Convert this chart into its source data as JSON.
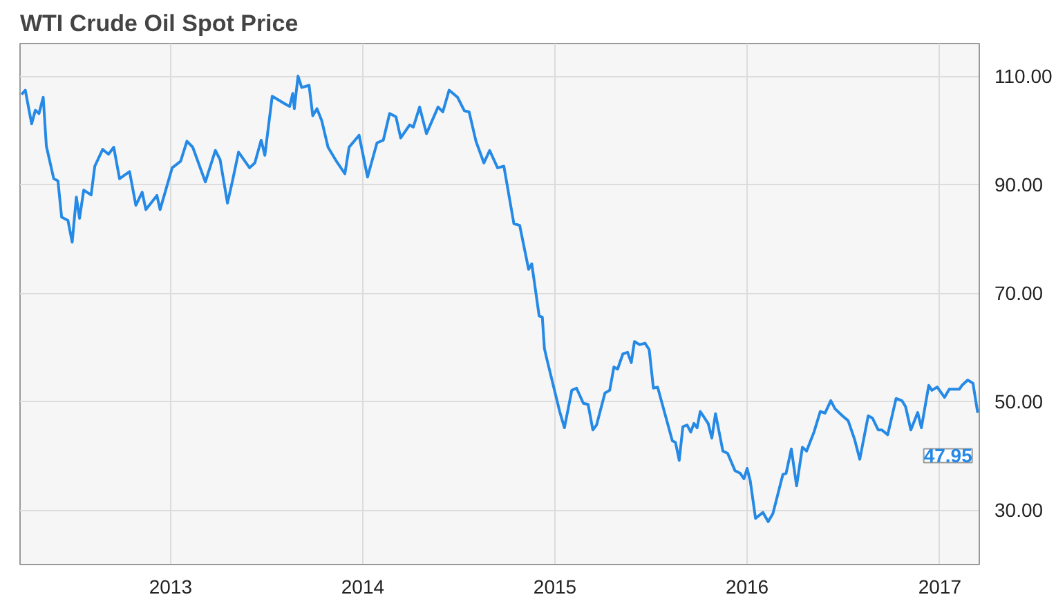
{
  "chart_data": {
    "type": "line",
    "title": "WTI Crude Oil Spot Price",
    "x": [
      "2012-03-24",
      "2012-03-31",
      "2012-04-12",
      "2012-04-19",
      "2012-04-26",
      "2012-05-04",
      "2012-05-10",
      "2012-05-24",
      "2012-06-01",
      "2012-06-08",
      "2012-06-20",
      "2012-06-28",
      "2012-07-06",
      "2012-07-12",
      "2012-07-20",
      "2012-08-03",
      "2012-08-10",
      "2012-08-25",
      "2012-09-05",
      "2012-09-15",
      "2012-09-26",
      "2012-10-15",
      "2012-10-27",
      "2012-11-08",
      "2012-11-15",
      "2012-12-06",
      "2012-12-12",
      "2013-01-04",
      "2013-01-20",
      "2013-02-01",
      "2013-02-12",
      "2013-03-08",
      "2013-03-27",
      "2013-04-05",
      "2013-04-19",
      "2013-04-29",
      "2013-05-10",
      "2013-05-31",
      "2013-06-10",
      "2013-06-22",
      "2013-06-29",
      "2013-07-13",
      "2013-08-06",
      "2013-08-15",
      "2013-08-21",
      "2013-08-24",
      "2013-08-31",
      "2013-09-07",
      "2013-09-21",
      "2013-09-28",
      "2013-10-06",
      "2013-10-15",
      "2013-10-27",
      "2013-11-12",
      "2013-11-28",
      "2013-12-06",
      "2013-12-25",
      "2014-01-10",
      "2014-01-28",
      "2014-02-09",
      "2014-02-21",
      "2014-03-05",
      "2014-03-14",
      "2014-03-31",
      "2014-04-07",
      "2014-04-19",
      "2014-05-02",
      "2014-05-24",
      "2014-06-02",
      "2014-06-14",
      "2014-06-30",
      "2014-07-13",
      "2014-07-22",
      "2014-08-04",
      "2014-08-19",
      "2014-08-30",
      "2014-09-14",
      "2014-09-26",
      "2014-10-15",
      "2014-10-26",
      "2014-11-12",
      "2014-11-18",
      "2014-12-02",
      "2014-12-08",
      "2014-12-12",
      "2014-12-17",
      "2015-01-10",
      "2015-01-19",
      "2015-02-02",
      "2015-02-11",
      "2015-02-24",
      "2015-03-05",
      "2015-03-14",
      "2015-03-21",
      "2015-04-06",
      "2015-04-15",
      "2015-04-23",
      "2015-04-30",
      "2015-05-10",
      "2015-05-19",
      "2015-05-26",
      "2015-06-01",
      "2015-06-11",
      "2015-06-21",
      "2015-06-29",
      "2015-07-07",
      "2015-07-15",
      "2015-08-12",
      "2015-08-18",
      "2015-08-25",
      "2015-09-01",
      "2015-09-09",
      "2015-09-16",
      "2015-09-22",
      "2015-09-28",
      "2015-10-04",
      "2015-10-19",
      "2015-10-26",
      "2015-11-02",
      "2015-11-16",
      "2015-11-25",
      "2015-12-09",
      "2015-12-19",
      "2015-12-26",
      "2016-01-01",
      "2016-01-07",
      "2016-01-17",
      "2016-01-31",
      "2016-02-10",
      "2016-02-19",
      "2016-03-09",
      "2016-03-15",
      "2016-03-25",
      "2016-04-04",
      "2016-04-15",
      "2016-04-23",
      "2016-05-07",
      "2016-05-19",
      "2016-05-28",
      "2016-06-08",
      "2016-06-16",
      "2016-06-30",
      "2016-07-11",
      "2016-07-23",
      "2016-08-02",
      "2016-08-18",
      "2016-08-26",
      "2016-09-06",
      "2016-09-13",
      "2016-09-24",
      "2016-10-10",
      "2016-10-21",
      "2016-10-28",
      "2016-11-07",
      "2016-11-20",
      "2016-11-27",
      "2016-12-11",
      "2016-12-17",
      "2016-12-27",
      "2017-01-10",
      "2017-01-19",
      "2017-02-07",
      "2017-02-12",
      "2017-02-23",
      "2017-03-05",
      "2017-03-14"
    ],
    "series": [
      {
        "color": "#2589e6",
        "values": [
          106.6,
          107.4,
          101.2,
          103.7,
          103.1,
          106.1,
          97.1,
          91.1,
          90.7,
          84.0,
          83.4,
          79.4,
          87.7,
          83.8,
          89.0,
          88.1,
          93.4,
          96.5,
          95.6,
          96.9,
          91.1,
          92.4,
          86.2,
          88.6,
          85.4,
          88.0,
          85.4,
          93.1,
          94.3,
          98.0,
          96.9,
          90.5,
          96.3,
          94.6,
          86.6,
          90.9,
          96.0,
          93.1,
          94.0,
          98.2,
          95.4,
          106.3,
          104.9,
          104.4,
          106.8,
          104.0,
          110.0,
          107.9,
          108.3,
          102.7,
          104.0,
          101.8,
          96.9,
          94.3,
          92.0,
          96.9,
          99.1,
          91.4,
          97.7,
          98.2,
          103.1,
          102.5,
          98.6,
          101.0,
          100.6,
          104.3,
          99.4,
          104.3,
          103.4,
          107.4,
          106.1,
          103.6,
          103.4,
          98.0,
          94.0,
          96.3,
          93.1,
          93.4,
          82.8,
          82.5,
          74.4,
          75.4,
          65.8,
          65.6,
          59.8,
          57.7,
          48.2,
          45.2,
          52.1,
          52.5,
          49.7,
          49.5,
          44.8,
          45.7,
          51.6,
          52.1,
          56.4,
          56.0,
          58.8,
          59.1,
          57.2,
          61.1,
          60.5,
          60.8,
          59.6,
          52.5,
          52.7,
          42.8,
          42.5,
          39.2,
          45.4,
          45.7,
          44.4,
          46.0,
          45.2,
          48.2,
          46.0,
          43.3,
          47.8,
          40.9,
          40.5,
          37.3,
          36.8,
          35.8,
          37.7,
          35.4,
          28.5,
          29.6,
          27.9,
          29.4,
          36.6,
          36.8,
          41.3,
          34.5,
          41.6,
          40.9,
          44.4,
          48.2,
          47.9,
          50.2,
          48.7,
          47.4,
          46.5,
          43.1,
          39.4,
          47.4,
          47.0,
          44.8,
          44.8,
          43.9,
          50.6,
          50.2,
          49.1,
          44.8,
          48.0,
          45.2,
          53.0,
          52.1,
          52.7,
          50.8,
          52.3,
          52.3,
          53.0,
          54.0,
          53.4,
          47.95
        ]
      }
    ],
    "xlim": [
      "2012-03-21",
      "2017-03-17"
    ],
    "xticks": [
      {
        "value": "2013",
        "label": "2013"
      },
      {
        "value": "2014",
        "label": "2014"
      },
      {
        "value": "2015",
        "label": "2015"
      },
      {
        "value": "2016",
        "label": "2016"
      },
      {
        "value": "2017",
        "label": "2017"
      }
    ],
    "ylim": [
      20,
      116
    ],
    "yticks": [
      {
        "value": 30,
        "label": "30.00"
      },
      {
        "value": 50,
        "label": "50.00"
      },
      {
        "value": 70,
        "label": "70.00"
      },
      {
        "value": 90,
        "label": "90.00"
      },
      {
        "value": 110,
        "label": "110.00"
      }
    ],
    "grid": true,
    "annotations": [
      {
        "text": "47.95",
        "x": "2017-03-14",
        "y": 47.95
      }
    ]
  }
}
